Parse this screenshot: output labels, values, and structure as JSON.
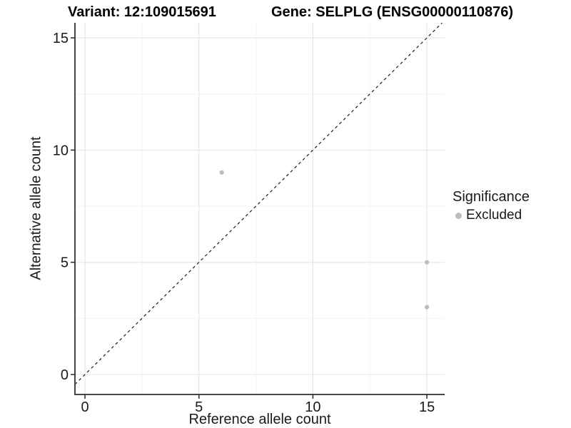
{
  "figure": {
    "title_variant": "Variant: 12:109015691",
    "title_gene": "Gene: SELPLG (ENSG00000110876)"
  },
  "chart_data": {
    "type": "scatter",
    "title": "Variant: 12:109015691 — Gene: SELPLG (ENSG00000110876)",
    "xlabel": "Reference allele count",
    "ylabel": "Alternative allele count",
    "xlim": [
      -0.44,
      15.78
    ],
    "ylim": [
      -0.89,
      15.67
    ],
    "x_major_ticks": [
      0,
      5,
      10,
      15
    ],
    "y_major_ticks": [
      0,
      5,
      10,
      15
    ],
    "x_minor_ticks": [
      2.5,
      7.5,
      12.5
    ],
    "y_minor_ticks": [
      2.5,
      7.5,
      12.5
    ],
    "grid": true,
    "reference_line": {
      "type": "identity",
      "slope": 1,
      "intercept": 0,
      "style": "dashed",
      "color": "#1a1a1a"
    },
    "series": [
      {
        "name": "Excluded",
        "color": "#bdbdbd",
        "points": [
          {
            "x": 6,
            "y": 9
          },
          {
            "x": 15,
            "y": 5
          },
          {
            "x": 15,
            "y": 3
          }
        ]
      }
    ],
    "legend": {
      "title": "Significance",
      "position": "right",
      "items": [
        {
          "label": "Excluded",
          "color": "#bdbdbd"
        }
      ]
    },
    "colors": {
      "major_grid": "#e4e4e4",
      "minor_grid": "#f0f0f0",
      "axis_line": "#474747",
      "tick_mark": "#333333",
      "point": "#bdbdbd"
    }
  }
}
